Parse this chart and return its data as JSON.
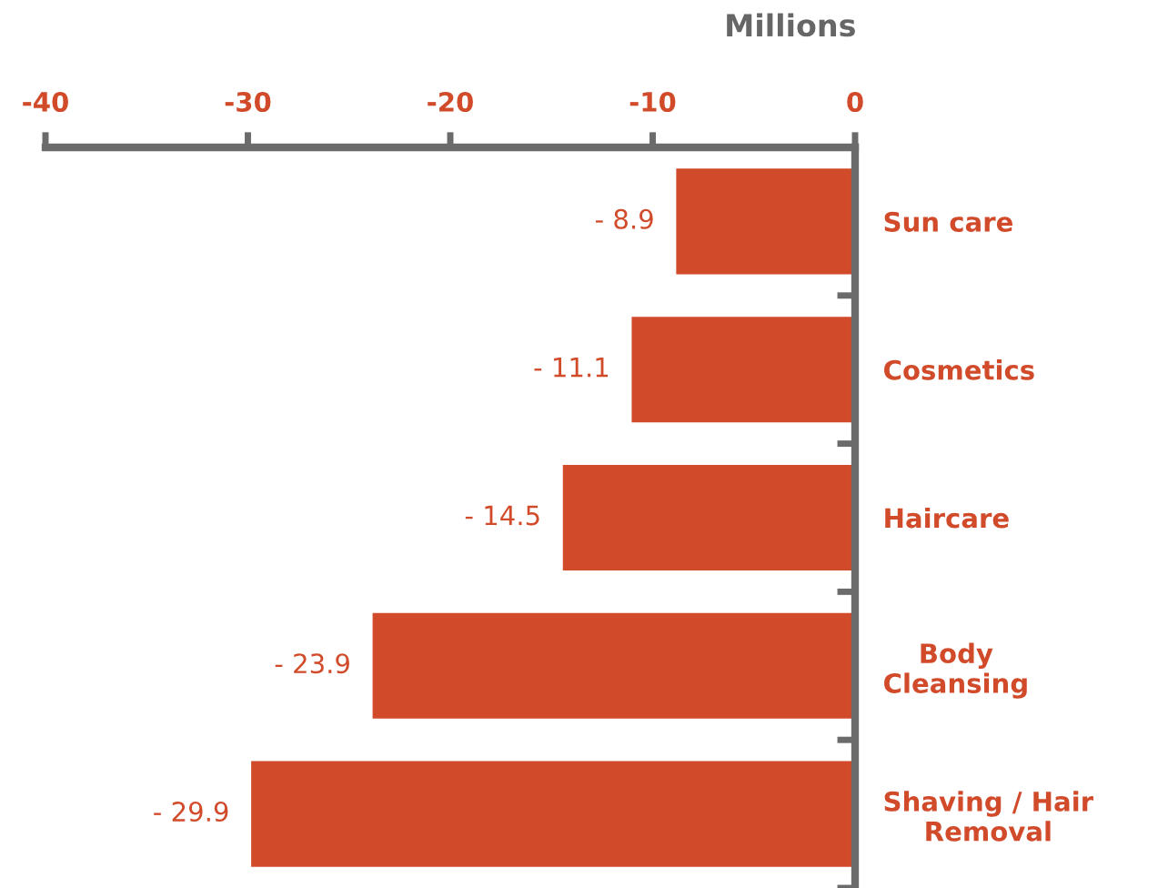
{
  "chart_data": {
    "type": "bar",
    "orientation": "horizontal",
    "xlabel": "Millions",
    "categories": [
      "Sun care",
      "Cosmetics",
      "Haircare",
      "Body\nCleansing",
      "Shaving / Hair\nRemoval"
    ],
    "values": [
      -8.9,
      -11.1,
      -14.5,
      -23.9,
      -29.9
    ],
    "value_labels": [
      "- 8.9",
      "- 11.1",
      "- 14.5",
      "- 23.9",
      "- 29.9"
    ],
    "color": "#d14a2a",
    "xlim": [
      -40,
      0
    ],
    "xticks": [
      -40,
      -30,
      -20,
      -10,
      0
    ]
  }
}
